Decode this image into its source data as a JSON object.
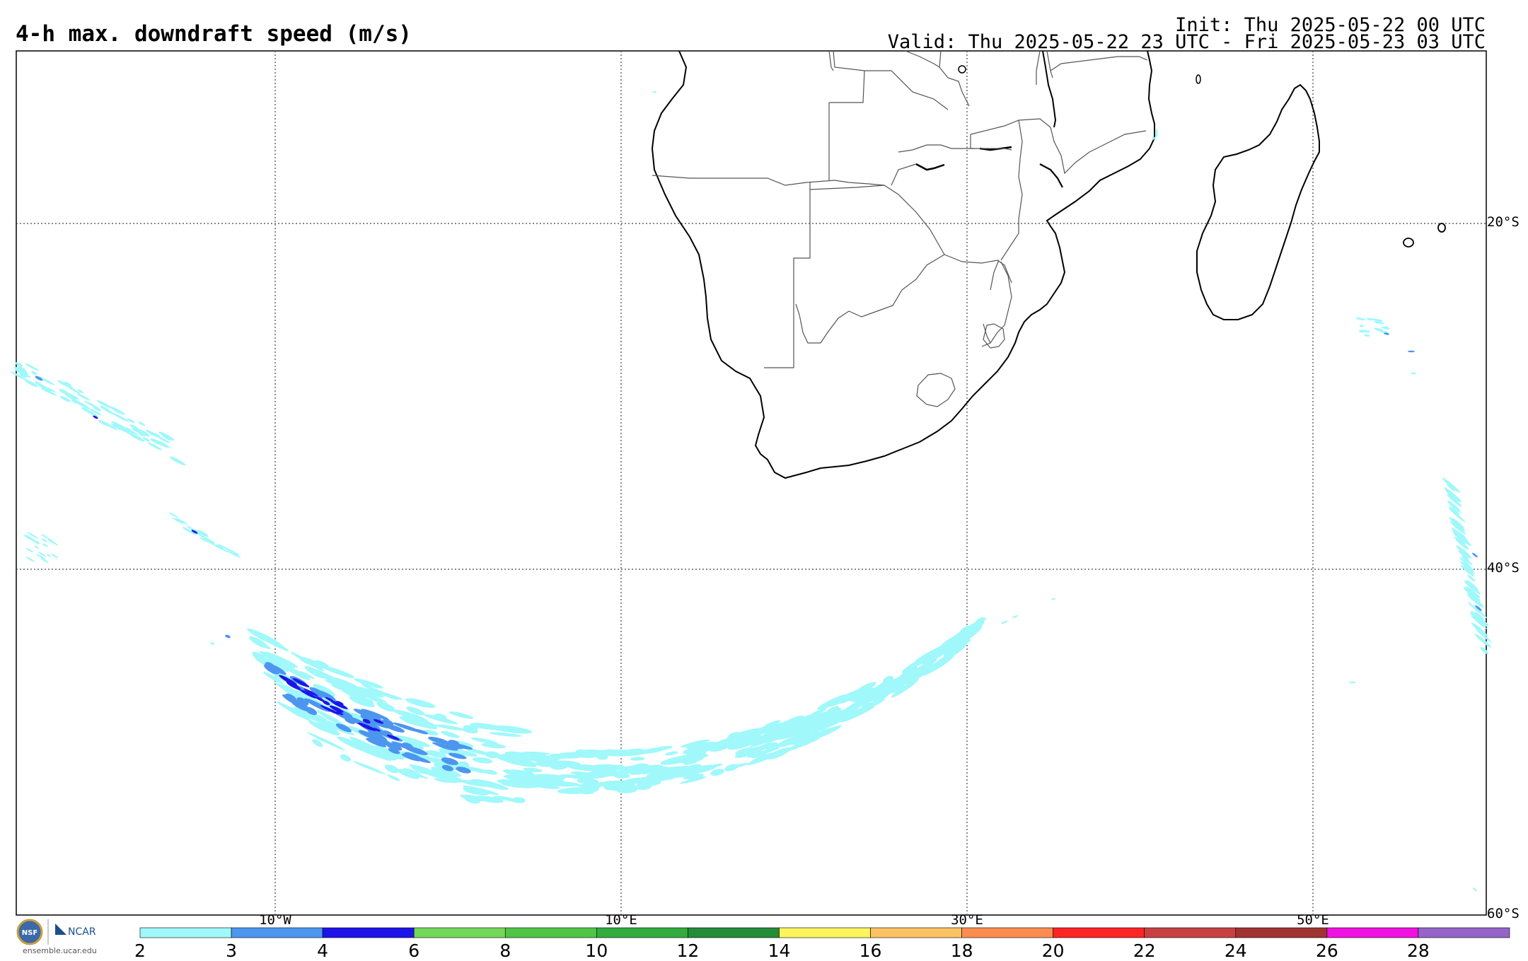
{
  "header": {
    "title": "4-h max. downdraft speed (m/s)",
    "init": "Init: Thu 2025-05-22 00 UTC",
    "valid": "Valid: Thu 2025-05-22 23 UTC - Fri 2025-05-23 03 UTC"
  },
  "map": {
    "lat_labels": [
      "20°S",
      "40°S",
      "60°S"
    ],
    "lon_labels": [
      "10°W",
      "10°E",
      "30°E",
      "50°E"
    ]
  },
  "colorbar": {
    "ticks": [
      "2",
      "3",
      "4",
      "6",
      "8",
      "10",
      "12",
      "14",
      "16",
      "18",
      "20",
      "22",
      "24",
      "26",
      "28"
    ],
    "colors": [
      "#a0f8fb",
      "#4c96f0",
      "#1c14e8",
      "#74d85a",
      "#50c444",
      "#32ac3c",
      "#228c38",
      "#fcf45c",
      "#fcc264",
      "#fc8c50",
      "#fc2424",
      "#c84040",
      "#a03232",
      "#f010e0",
      "#9464c8"
    ]
  },
  "logo": {
    "nsf": "NSF",
    "ncar": "NCAR",
    "url": "ensemble.ucar.edu"
  },
  "colors": {
    "coast": "#000000",
    "border": "#555555",
    "grid": "#444444"
  }
}
